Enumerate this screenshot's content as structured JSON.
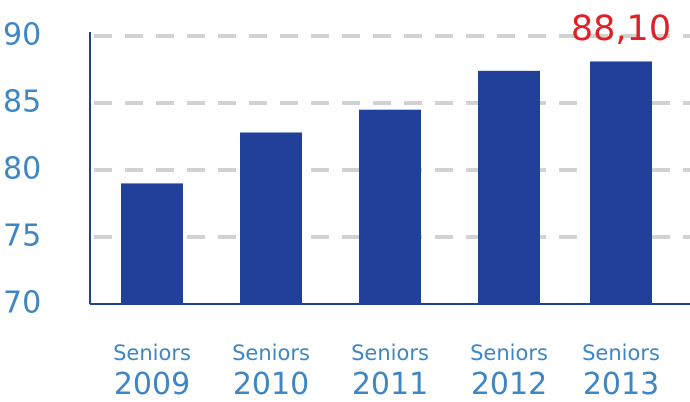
{
  "chart_data": {
    "type": "bar",
    "categories": [
      {
        "line1": "Seniors",
        "line2": "2009"
      },
      {
        "line1": "Seniors",
        "line2": "2010"
      },
      {
        "line1": "Seniors",
        "line2": "2011"
      },
      {
        "line1": "Seniors",
        "line2": "2012"
      },
      {
        "line1": "Seniors",
        "line2": "2013"
      }
    ],
    "values": [
      79.0,
      82.8,
      84.5,
      87.4,
      88.1
    ],
    "ylim": [
      70,
      90
    ],
    "yticks": [
      "70",
      "75",
      "80",
      "85",
      "90"
    ],
    "ytick_values": [
      70,
      75,
      80,
      85,
      90
    ],
    "grid": "dashed horizontal",
    "data_labels": [
      {
        "index": 4,
        "text": "88,10"
      }
    ],
    "colors": {
      "bar": "#21409a",
      "axis": "#21409a",
      "grid": "#d2d2d2",
      "tick_text": "#3f86c4",
      "highlight_label": "#e31f26"
    }
  }
}
